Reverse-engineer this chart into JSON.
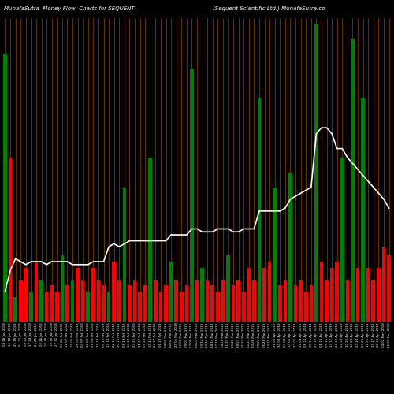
{
  "title_left": "MunafaSutra  Money Flow  Charts for SEQUENT",
  "title_right": "(Sequent Scientific Ltd.) MunafaSutra.co",
  "background_color": "#000000",
  "bar_colors_pattern": [
    "green",
    "red",
    "green",
    "red",
    "red",
    "green",
    "red",
    "green",
    "red",
    "red",
    "red",
    "green",
    "red",
    "green",
    "red",
    "red",
    "green",
    "red",
    "red",
    "red",
    "green",
    "red",
    "red",
    "green",
    "red",
    "red",
    "red",
    "red",
    "green",
    "red",
    "red",
    "red",
    "green",
    "red",
    "red",
    "red",
    "green",
    "red",
    "green",
    "red",
    "red",
    "red",
    "red",
    "green",
    "red",
    "red",
    "red",
    "red",
    "red",
    "green",
    "red",
    "red",
    "green",
    "red",
    "red",
    "green",
    "red",
    "red",
    "red",
    "red",
    "green",
    "red",
    "red",
    "red",
    "red",
    "green",
    "red",
    "green",
    "red",
    "green",
    "red",
    "red",
    "red",
    "red",
    "red"
  ],
  "bar1_heights": [
    90,
    55,
    8,
    14,
    18,
    10,
    20,
    14,
    10,
    12,
    10,
    22,
    12,
    14,
    18,
    14,
    10,
    18,
    14,
    12,
    10,
    20,
    14,
    45,
    12,
    14,
    10,
    12,
    55,
    14,
    10,
    12,
    20,
    14,
    10,
    12,
    85,
    14,
    18,
    14,
    12,
    10,
    14,
    22,
    12,
    14,
    10,
    18,
    14,
    75,
    18,
    20,
    45,
    12,
    14,
    50,
    12,
    14,
    10,
    12,
    100,
    20,
    14,
    18,
    20,
    55,
    14,
    95,
    18,
    75,
    18,
    14,
    18,
    25,
    22
  ],
  "bar2_heights": [
    6,
    10,
    4,
    6,
    6,
    4,
    6,
    4,
    4,
    6,
    4,
    6,
    4,
    4,
    6,
    4,
    4,
    4,
    6,
    4,
    4,
    6,
    4,
    12,
    4,
    4,
    4,
    4,
    15,
    4,
    4,
    4,
    6,
    4,
    4,
    4,
    22,
    4,
    6,
    4,
    4,
    4,
    4,
    6,
    4,
    4,
    4,
    6,
    4,
    20,
    6,
    6,
    15,
    4,
    4,
    15,
    4,
    4,
    4,
    4,
    28,
    6,
    4,
    6,
    6,
    18,
    4,
    28,
    6,
    22,
    6,
    4,
    6,
    8,
    8
  ],
  "line_values": [
    5,
    12,
    16,
    15,
    14,
    15,
    15,
    15,
    14,
    15,
    15,
    15,
    15,
    14,
    14,
    14,
    14,
    15,
    15,
    15,
    20,
    21,
    20,
    21,
    22,
    22,
    22,
    22,
    22,
    22,
    22,
    22,
    24,
    24,
    24,
    24,
    26,
    26,
    25,
    25,
    25,
    26,
    26,
    26,
    25,
    25,
    26,
    26,
    26,
    32,
    32,
    32,
    32,
    32,
    33,
    36,
    37,
    38,
    39,
    40,
    58,
    60,
    60,
    58,
    53,
    53,
    50,
    48,
    46,
    44,
    42,
    40,
    38,
    36,
    33
  ],
  "grid_color": "#8B4500",
  "grid_linewidth": 0.5,
  "bar_width": 0.7,
  "title_fontsize": 5.5,
  "xlabels": [
    "08 18 Jan 2018",
    "16 18 Jan 2018",
    "25 19 Jan 2018",
    "01 22 Jan 2018",
    "09 23 Jan 2018",
    "17 24 Jan 2018",
    "26 25 Jan 2018",
    "02 26 Jan 2018",
    "10 29 Jan 2018",
    "18 30 Jan 2018",
    "27 31 Jan 2018",
    "03 01 Feb 2018",
    "11 02 Feb 2018",
    "19 05 Feb 2018",
    "28 06 Feb 2018",
    "04 07 Feb 2018",
    "12 08 Feb 2018",
    "21 09 Feb 2018",
    "29 12 Feb 2018",
    "05 13 Feb 2018",
    "13 14 Feb 2018",
    "22 15 Feb 2018",
    "30 16 Feb 2018",
    "06 19 Feb 2018",
    "14 20 Feb 2018",
    "23 21 Feb 2018",
    "31 22 Feb 2018",
    "07 23 Feb 2018",
    "15 26 Feb 2018",
    "24 27 Feb 2018",
    "01 28 Feb 2018",
    "08 01 Mar 2018",
    "16 02 Mar 2018",
    "25 05 Mar 2018",
    "02 06 Mar 2018",
    "09 07 Mar 2018",
    "17 08 Mar 2018",
    "26 09 Mar 2018",
    "03 12 Mar 2018",
    "10 13 Mar 2018",
    "18 14 Mar 2018",
    "27 15 Mar 2018",
    "04 16 Mar 2018",
    "11 19 Mar 2018",
    "19 20 Mar 2018",
    "28 21 Mar 2018",
    "05 22 Mar 2018",
    "12 23 Mar 2018",
    "20 26 Mar 2018",
    "29 27 Mar 2018",
    "06 28 Mar 2018",
    "13 29 Mar 2018",
    "21 02 Apr 2018",
    "30 03 Apr 2018",
    "07 04 Apr 2018",
    "14 05 Apr 2018",
    "22 06 Apr 2018",
    "31 09 Apr 2018",
    "08 10 Apr 2018",
    "15 11 Apr 2018",
    "23 12 Apr 2018",
    "01 13 Apr 2018",
    "09 16 Apr 2018",
    "17 17 Apr 2018",
    "26 18 Apr 2018",
    "02 19 Apr 2018",
    "10 20 Apr 2018",
    "18 23 Apr 2018",
    "27 24 Apr 2018",
    "03 25 Apr 2018",
    "11 26 Apr 2018",
    "19 27 Apr 2018",
    "28 30 Apr 2018",
    "04 02 May 2018",
    "12 03 May 2018"
  ]
}
